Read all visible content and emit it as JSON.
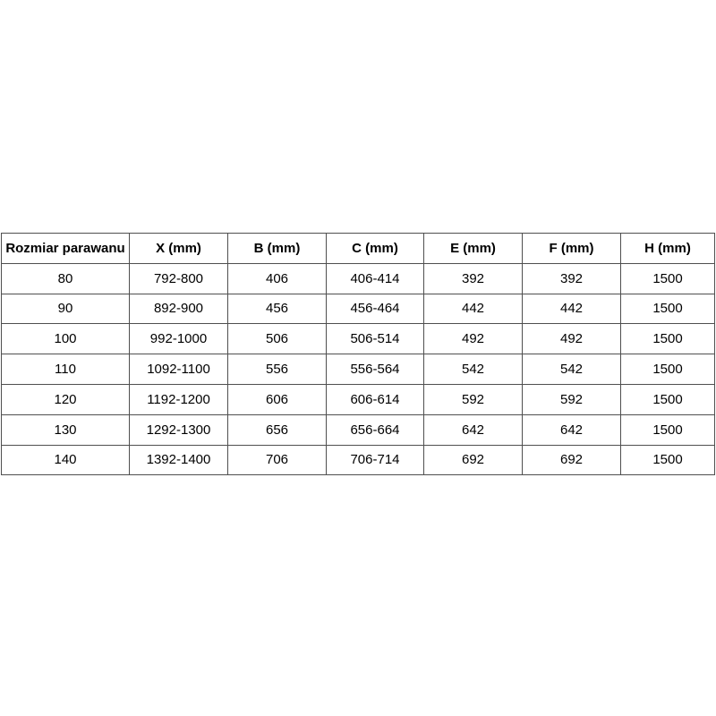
{
  "page": {
    "background": "#ffffff",
    "text_color": "#000000",
    "border_color": "#4f4f4f"
  },
  "chart_data": {
    "type": "table",
    "title": "",
    "columns": [
      "Rozmiar parawanu",
      "X (mm)",
      "B (mm)",
      "C (mm)",
      "E (mm)",
      "F (mm)",
      "H (mm)"
    ],
    "rows": [
      [
        "80",
        "792-800",
        "406",
        "406-414",
        "392",
        "392",
        "1500"
      ],
      [
        "90",
        "892-900",
        "456",
        "456-464",
        "442",
        "442",
        "1500"
      ],
      [
        "100",
        "992-1000",
        "506",
        "506-514",
        "492",
        "492",
        "1500"
      ],
      [
        "110",
        "1092-1100",
        "556",
        "556-564",
        "542",
        "542",
        "1500"
      ],
      [
        "120",
        "1192-1200",
        "606",
        "606-614",
        "592",
        "592",
        "1500"
      ],
      [
        "130",
        "1292-1300",
        "656",
        "656-664",
        "642",
        "642",
        "1500"
      ],
      [
        "140",
        "1392-1400",
        "706",
        "706-714",
        "692",
        "692",
        "1500"
      ]
    ],
    "layout": {
      "grid": true,
      "header_bold": true,
      "cell_align": "center"
    }
  }
}
